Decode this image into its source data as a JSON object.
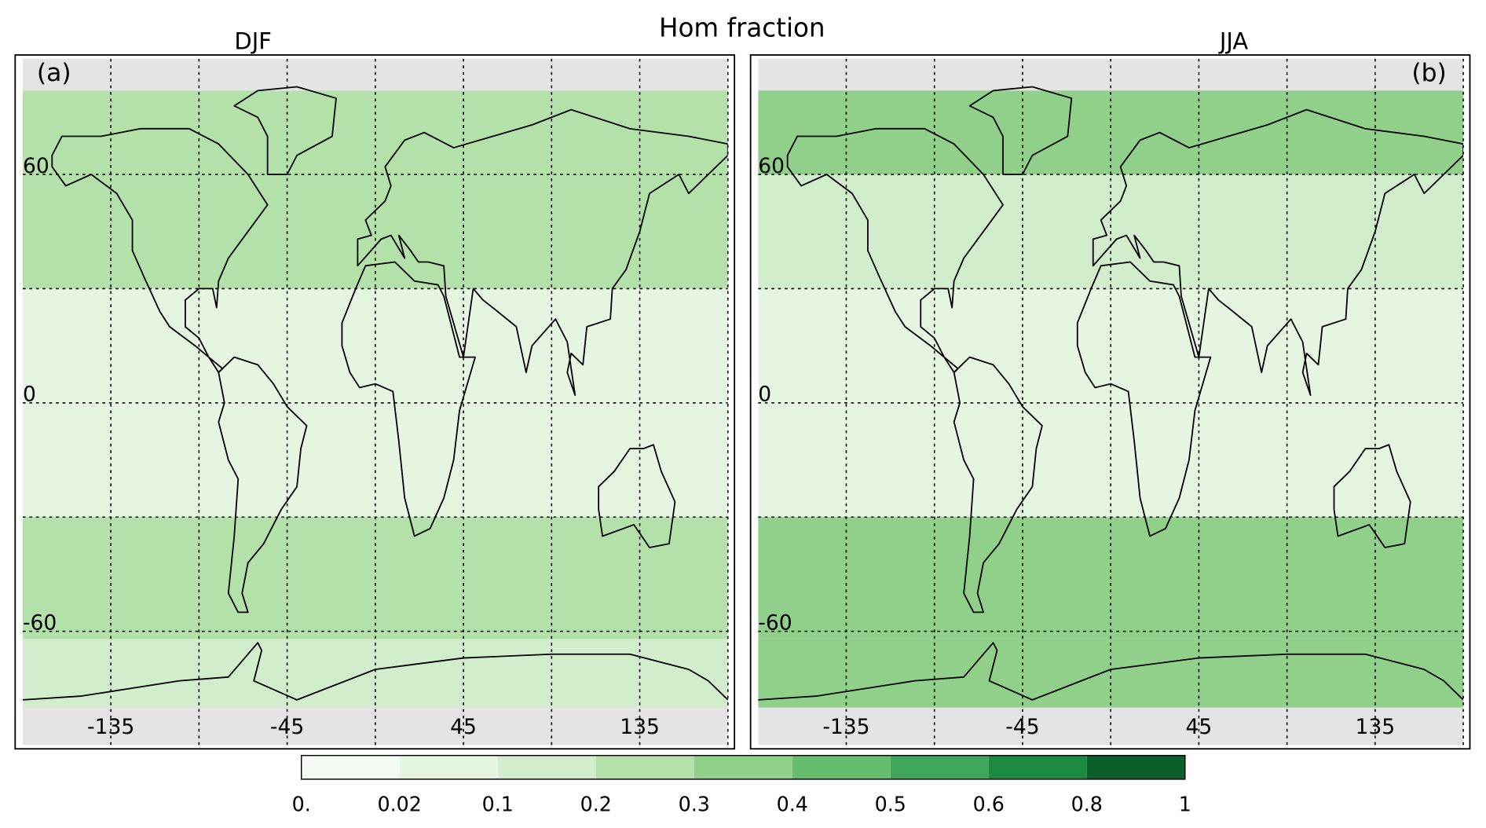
{
  "title": "Hom fraction",
  "panels": [
    {
      "title": "DJF",
      "label": "(a)",
      "bands": [
        {
          "lat": [
            82,
            30
          ],
          "value": 0.25
        },
        {
          "lat": [
            30,
            -30
          ],
          "value": 0.05
        },
        {
          "lat": [
            -30,
            -62
          ],
          "value": 0.2
        },
        {
          "lat": [
            -62,
            -80
          ],
          "value": 0.15
        }
      ]
    },
    {
      "title": "JJA",
      "label": "(b)",
      "bands": [
        {
          "lat": [
            82,
            60
          ],
          "value": 0.3
        },
        {
          "lat": [
            60,
            30
          ],
          "value": 0.15
        },
        {
          "lat": [
            30,
            -30
          ],
          "value": 0.05
        },
        {
          "lat": [
            -30,
            -62
          ],
          "value": 0.3
        },
        {
          "lat": [
            -62,
            -80
          ],
          "value": 0.35
        }
      ]
    }
  ],
  "lon_ticks": [
    -135,
    -45,
    45,
    135
  ],
  "lat_ticks": [
    60,
    0,
    -60
  ],
  "lon_grid": [
    -135,
    -90,
    -45,
    0,
    45,
    90,
    135,
    180
  ],
  "lat_grid": [
    60,
    30,
    0,
    -30,
    -60
  ],
  "colorbar": {
    "ticks": [
      {
        "value": 0,
        "label": "0."
      },
      0.02,
      0.1,
      0.2,
      0.3,
      0.4,
      0.5,
      0.6,
      0.8,
      1
    ],
    "colors": [
      "#f4fbf2",
      "#e6f5e2",
      "#d2edcb",
      "#b4e0aa",
      "#90d08a",
      "#66bd6e",
      "#40a65b",
      "#1c8b40",
      "#0b5f2b"
    ]
  }
}
